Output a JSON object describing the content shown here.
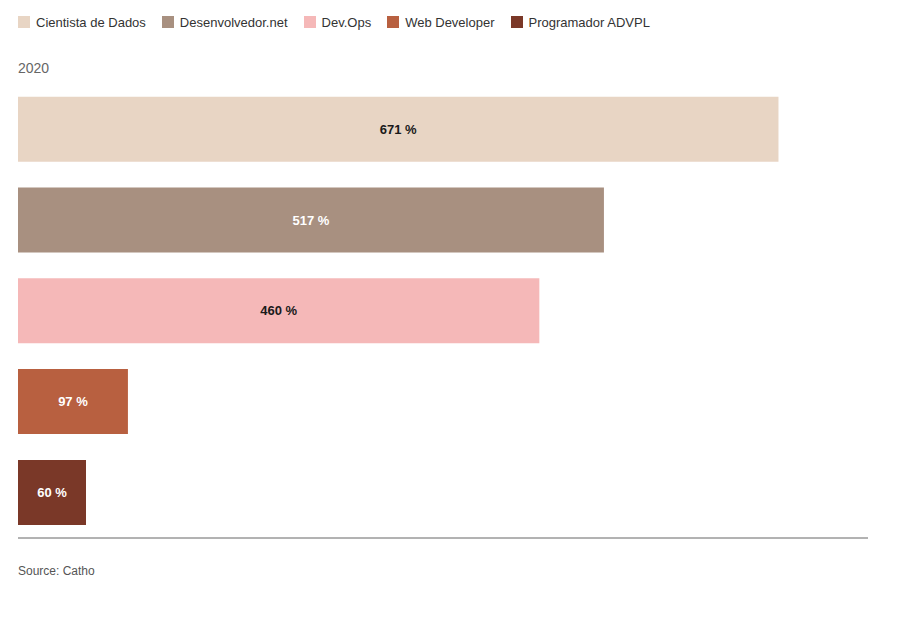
{
  "chart_data": {
    "type": "bar",
    "orientation": "horizontal",
    "categories": [
      "Cientista de Dados",
      "Desenvolvedor.net",
      "Dev.Ops",
      "Web Developer",
      "Programador ADVPL"
    ],
    "values": [
      671,
      517,
      460,
      97,
      60
    ],
    "value_labels": [
      "671 %",
      "517 %",
      "460 %",
      "97 %",
      "60 %"
    ],
    "colors": [
      "#e8d5c4",
      "#a89080",
      "#f5b8b8",
      "#b86040",
      "#7a3828"
    ],
    "xlim": [
      0,
      750
    ],
    "data_labels": true,
    "tick_labels": false,
    "grid": false,
    "legend": "upper left",
    "annotations": [
      "2020",
      "Source: Catho"
    ]
  }
}
